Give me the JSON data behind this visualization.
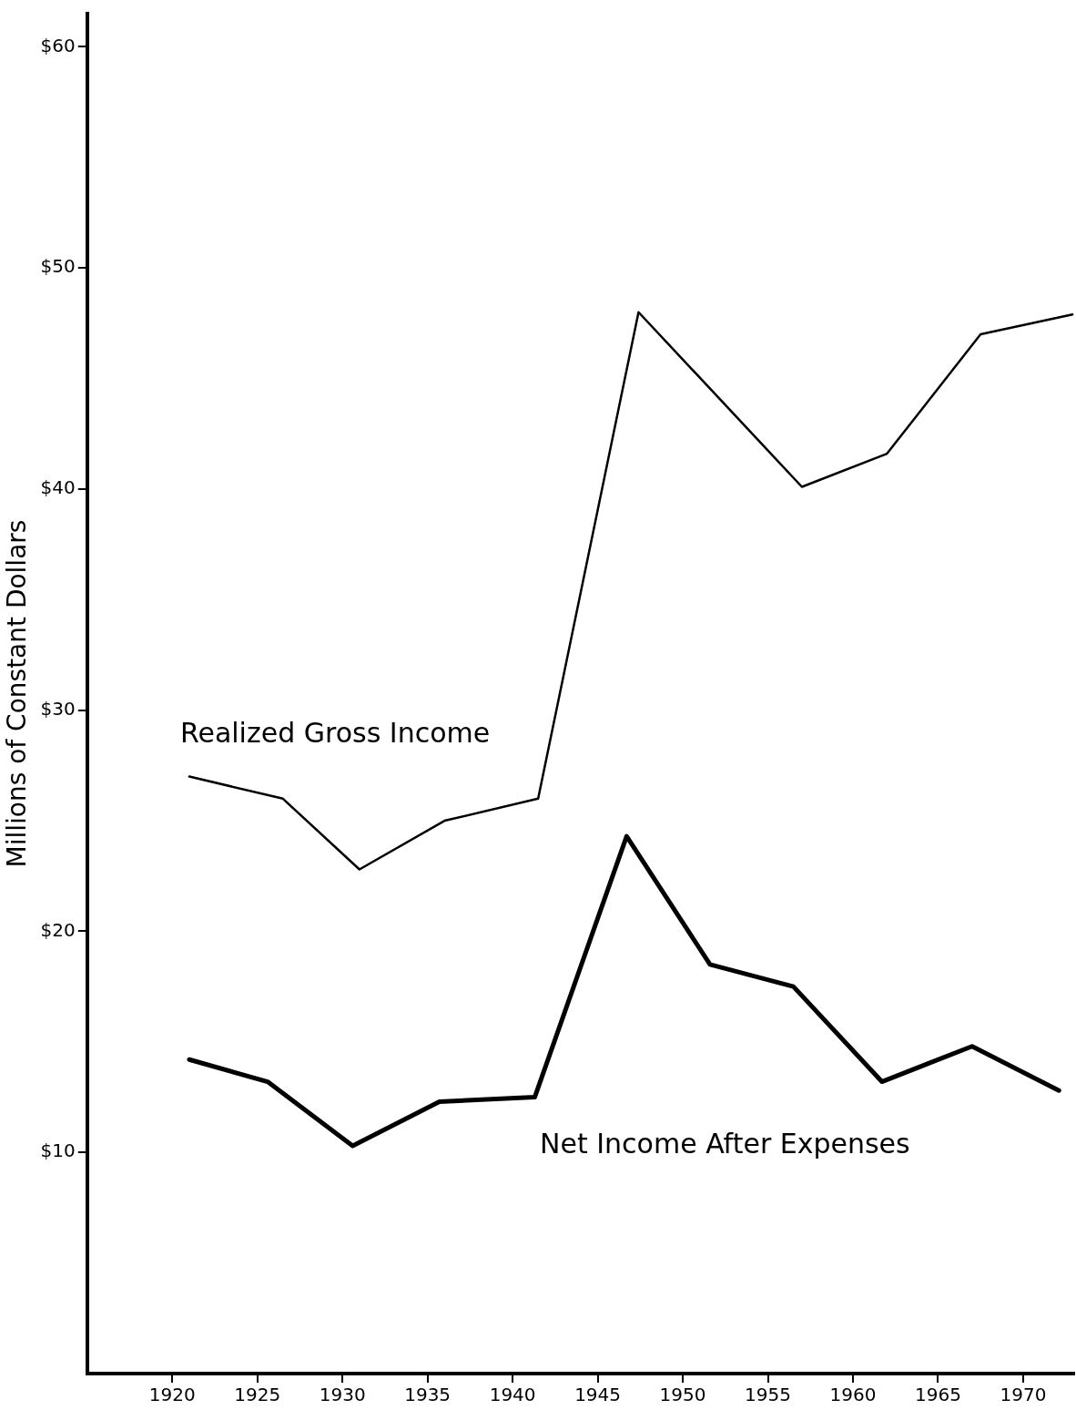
{
  "chart_data": {
    "type": "line",
    "ylabel": "Millions of Constant Dollars",
    "xlim": [
      1915,
      1973
    ],
    "xticks": [
      1920,
      1925,
      1930,
      1935,
      1940,
      1945,
      1950,
      1955,
      1960,
      1965,
      1970
    ],
    "ylim": [
      0,
      61.5
    ],
    "yticks": [
      {
        "value": 10,
        "label": "$10"
      },
      {
        "value": 20,
        "label": "$20"
      },
      {
        "value": 30,
        "label": "$30"
      },
      {
        "value": 40,
        "label": "$40"
      },
      {
        "value": 50,
        "label": "$50"
      },
      {
        "value": 60,
        "label": "$60"
      }
    ],
    "grid": false,
    "legend": false,
    "marker": "none",
    "line_style": "solid",
    "series": [
      {
        "name": "Realized Gross Income",
        "color": "#000000",
        "x": [
          1921,
          1926.5,
          1931,
          1936,
          1941.5,
          1947.4,
          1957,
          1962,
          1967.5,
          1972.9
        ],
        "values": [
          27.0,
          26.0,
          22.8,
          25.0,
          26.0,
          48.0,
          40.1,
          41.6,
          47.0,
          47.9
        ]
      },
      {
        "name": "Net Income After Expenses",
        "color": "#000000",
        "x": [
          1921,
          1925.6,
          1930.6,
          1935.7,
          1941.3,
          1946.7,
          1951.6,
          1956.5,
          1961.7,
          1967,
          1972.1
        ],
        "values": [
          14.2,
          13.2,
          10.3,
          12.3,
          12.5,
          24.3,
          18.5,
          17.5,
          13.2,
          14.8,
          12.8
        ]
      }
    ]
  }
}
